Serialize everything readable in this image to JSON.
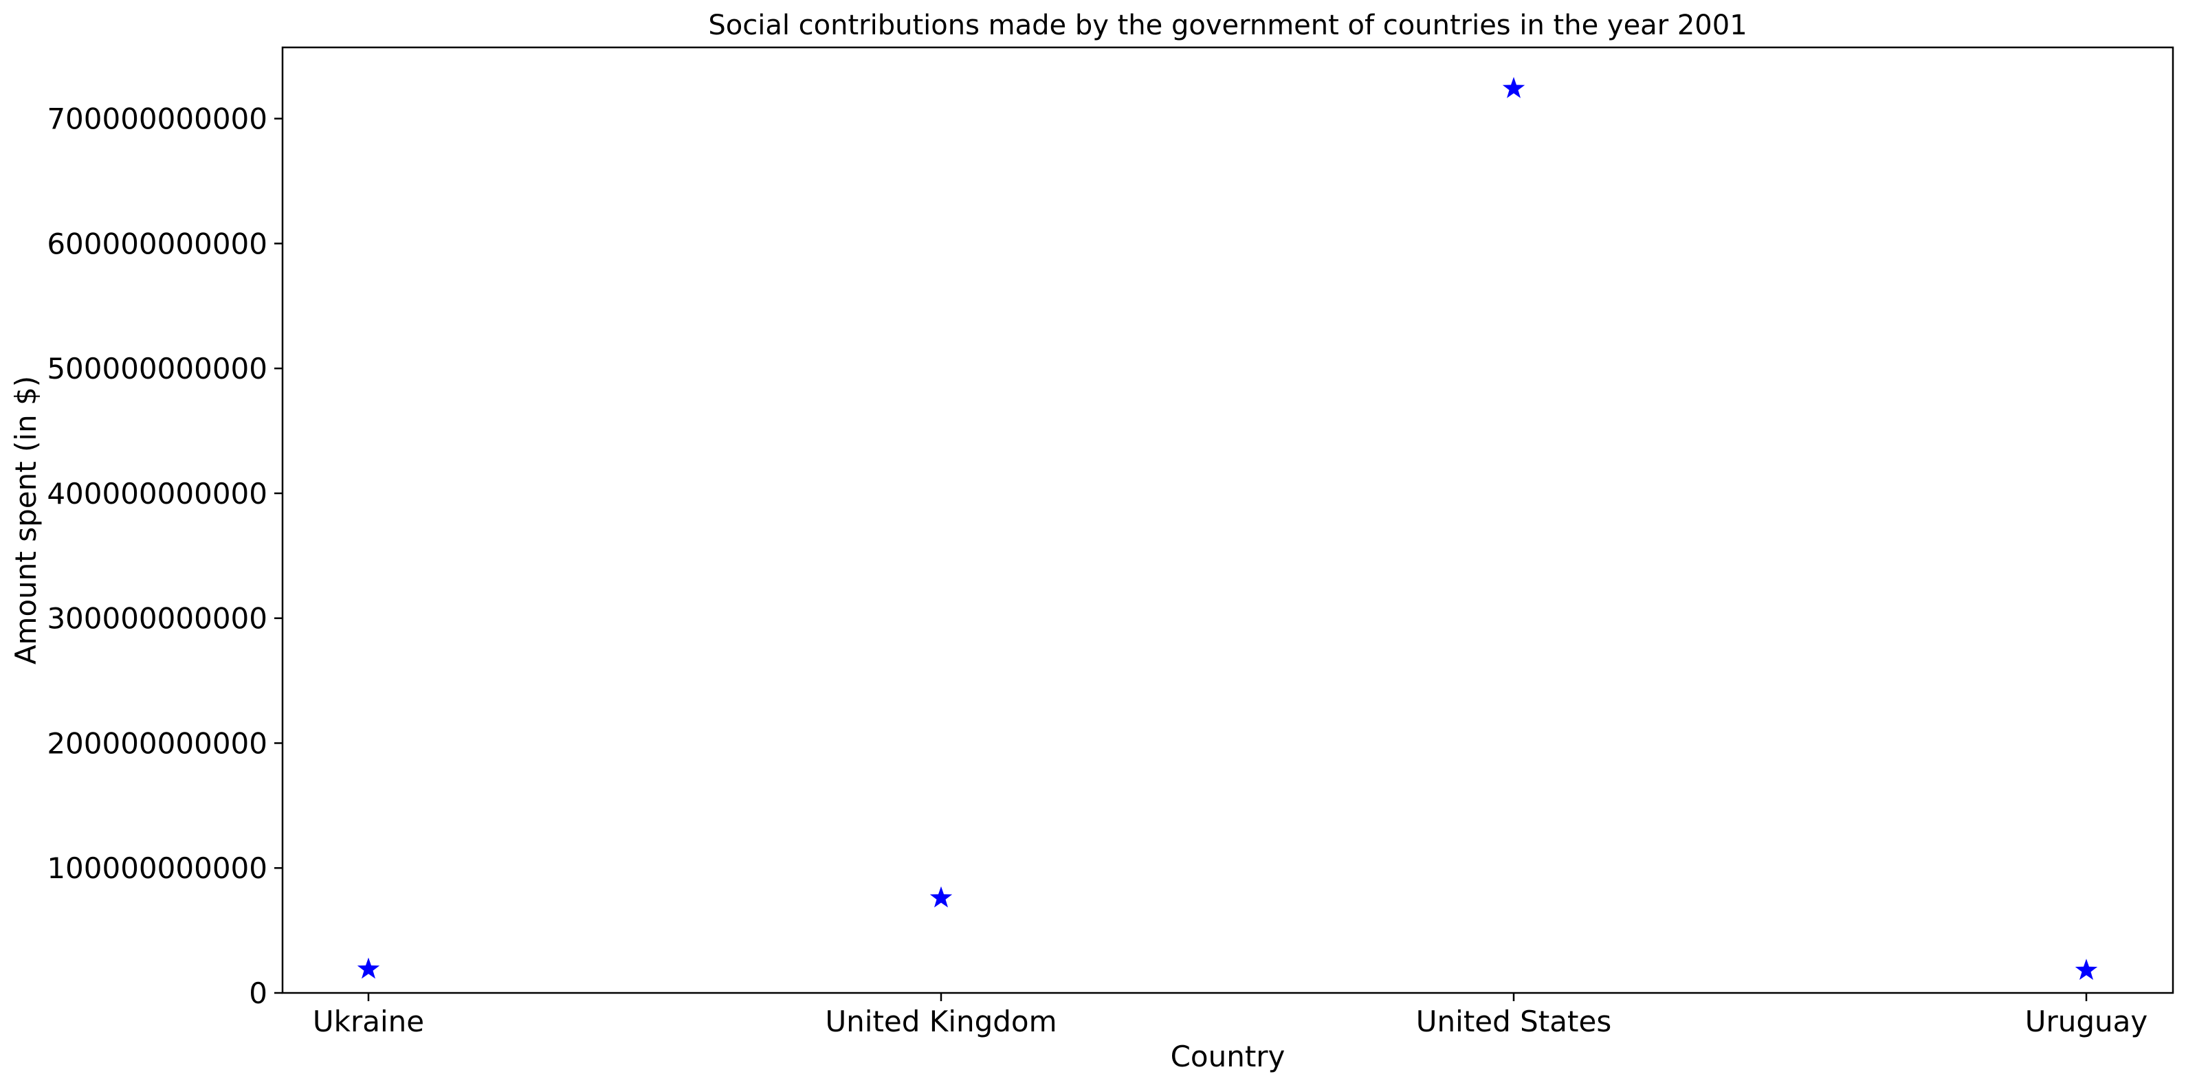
{
  "chart_data": {
    "type": "scatter",
    "title": "Social contributions made by the government of countries in the year 2001",
    "xlabel": "Country",
    "ylabel": "Amount spent (in $)",
    "categories": [
      "Ukraine",
      "United Kingdom",
      "United States",
      "Uruguay"
    ],
    "series": [
      {
        "values": [
          19000000000,
          76000000000,
          724000000000,
          18000000000
        ],
        "color": "#0000ff",
        "marker": "star"
      }
    ],
    "ylim": [
      0,
      757000000000
    ],
    "yticks": [
      0,
      100000000000,
      200000000000,
      300000000000,
      400000000000,
      500000000000,
      600000000000,
      700000000000
    ],
    "ytick_labels": [
      "0",
      "100000000000",
      "200000000000",
      "300000000000",
      "400000000000",
      "500000000000",
      "600000000000",
      "700000000000"
    ],
    "grid": false,
    "legend": "none"
  }
}
